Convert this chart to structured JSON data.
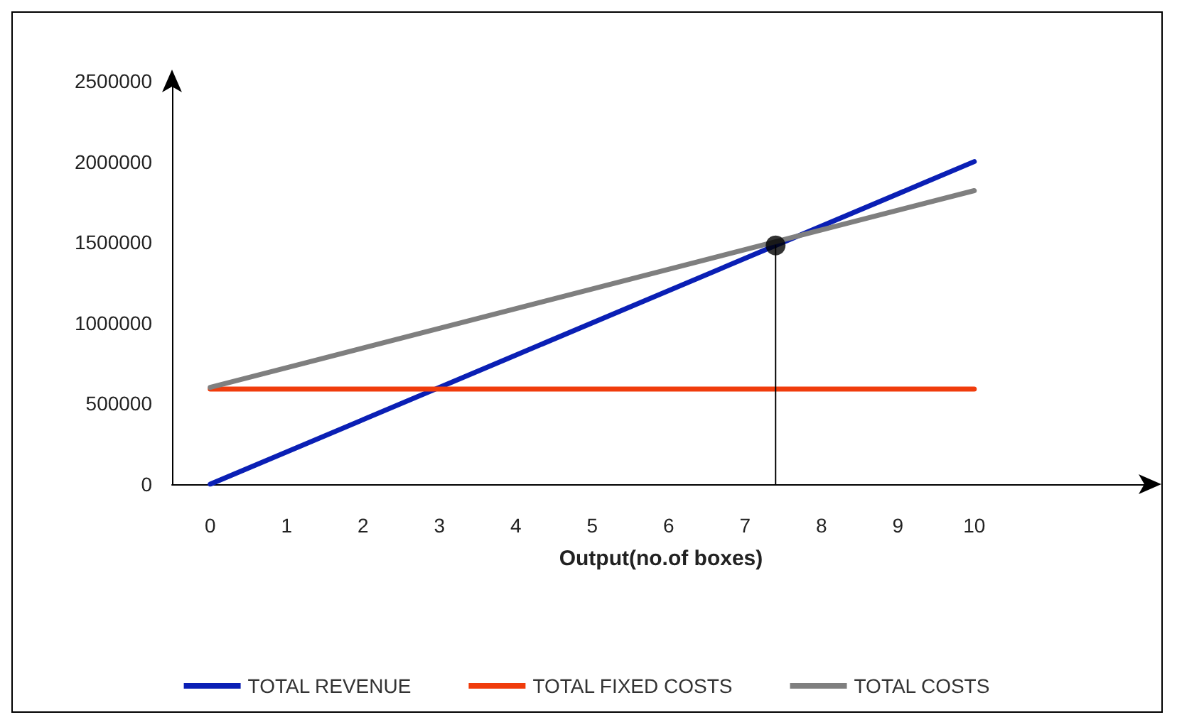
{
  "chart_data": {
    "type": "line",
    "xlabel": "Output(no.of boxes)",
    "xlim": [
      -0.5,
      12.3
    ],
    "xticks": [
      0,
      1,
      2,
      3,
      4,
      5,
      6,
      7,
      8,
      9,
      10
    ],
    "ylim": [
      0,
      2500000
    ],
    "yticks": [
      0,
      500000,
      1000000,
      1500000,
      2000000,
      2500000
    ],
    "grid": false,
    "legend": "bottom",
    "marker": "none",
    "line_style": "solid",
    "series": [
      {
        "name": "TOTAL REVENUE",
        "color": "#0a1fb5",
        "x": [
          0,
          10
        ],
        "values": [
          0,
          2000000
        ]
      },
      {
        "name": "TOTAL FIXED COSTS",
        "color": "#f03c0c",
        "x": [
          0,
          10
        ],
        "values": [
          590000,
          590000
        ]
      },
      {
        "name": "TOTAL COSTS",
        "color": "#7f7f7f",
        "x": [
          0,
          10
        ],
        "values": [
          600000,
          1820000
        ]
      },
      {
        "type": "line",
        "color": "#000000",
        "x": [
          7.4,
          7.4
        ],
        "values": [
          0,
          1480000
        ]
      },
      {
        "type": "scatter",
        "marker": "circle",
        "color": "#000000",
        "x": [
          7.4
        ],
        "values": [
          1480000
        ]
      }
    ]
  }
}
